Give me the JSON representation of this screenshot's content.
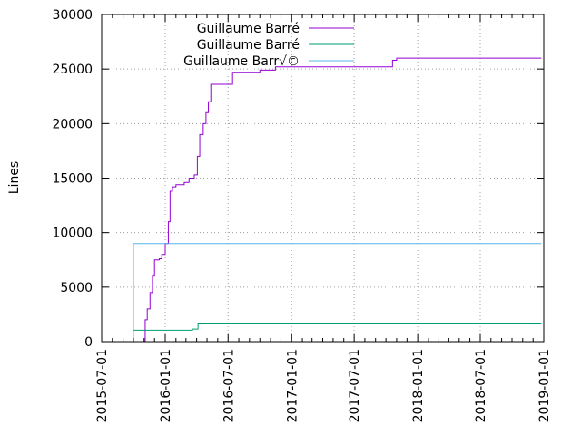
{
  "chart_data": {
    "type": "line",
    "title": "",
    "xlabel": "",
    "ylabel": "Lines",
    "ylim": [
      0,
      30000
    ],
    "xlim": [
      "2015-07-01",
      "2019-01-01"
    ],
    "yticks": [
      0,
      5000,
      10000,
      15000,
      20000,
      25000,
      30000
    ],
    "xticks": [
      "2015-07-01",
      "2016-01-01",
      "2016-07-01",
      "2017-01-01",
      "2017-07-01",
      "2018-01-01",
      "2018-07-01",
      "2019-01-01"
    ],
    "grid": true,
    "legend": "top-left",
    "step": true,
    "series": [
      {
        "name": "Guillaume Barré",
        "color": "#9400d3",
        "points": [
          [
            "2015-11-01",
            0
          ],
          [
            "2015-11-04",
            2000
          ],
          [
            "2015-11-10",
            3000
          ],
          [
            "2015-11-18",
            4500
          ],
          [
            "2015-11-25",
            6000
          ],
          [
            "2015-12-01",
            7500
          ],
          [
            "2015-12-15",
            7600
          ],
          [
            "2015-12-22",
            8000
          ],
          [
            "2016-01-01",
            9000
          ],
          [
            "2016-01-10",
            11000
          ],
          [
            "2016-01-15",
            13800
          ],
          [
            "2016-01-22",
            14200
          ],
          [
            "2016-02-01",
            14400
          ],
          [
            "2016-02-25",
            14600
          ],
          [
            "2016-03-10",
            15000
          ],
          [
            "2016-03-25",
            15300
          ],
          [
            "2016-04-03",
            17000
          ],
          [
            "2016-04-10",
            19000
          ],
          [
            "2016-04-20",
            20000
          ],
          [
            "2016-04-28",
            21000
          ],
          [
            "2016-05-05",
            22000
          ],
          [
            "2016-05-12",
            23600
          ],
          [
            "2016-07-10",
            23600
          ],
          [
            "2016-07-14",
            24700
          ],
          [
            "2016-10-01",
            24900
          ],
          [
            "2016-11-15",
            25200
          ],
          [
            "2017-10-15",
            25200
          ],
          [
            "2017-10-20",
            25800
          ],
          [
            "2017-11-01",
            26000
          ],
          [
            "2018-12-25",
            26000
          ]
        ]
      },
      {
        "name": "Guillaume Barré",
        "color": "#009e73",
        "points": [
          [
            "2015-10-01",
            1050
          ],
          [
            "2016-03-15",
            1050
          ],
          [
            "2016-03-20",
            1150
          ],
          [
            "2016-04-05",
            1700
          ],
          [
            "2018-12-25",
            1700
          ]
        ]
      },
      {
        "name": "Guillaume Barr√©",
        "color": "#56b4e9",
        "points": [
          [
            "2015-09-25",
            0
          ],
          [
            "2015-10-01",
            9000
          ],
          [
            "2018-12-25",
            9000
          ]
        ]
      }
    ]
  }
}
